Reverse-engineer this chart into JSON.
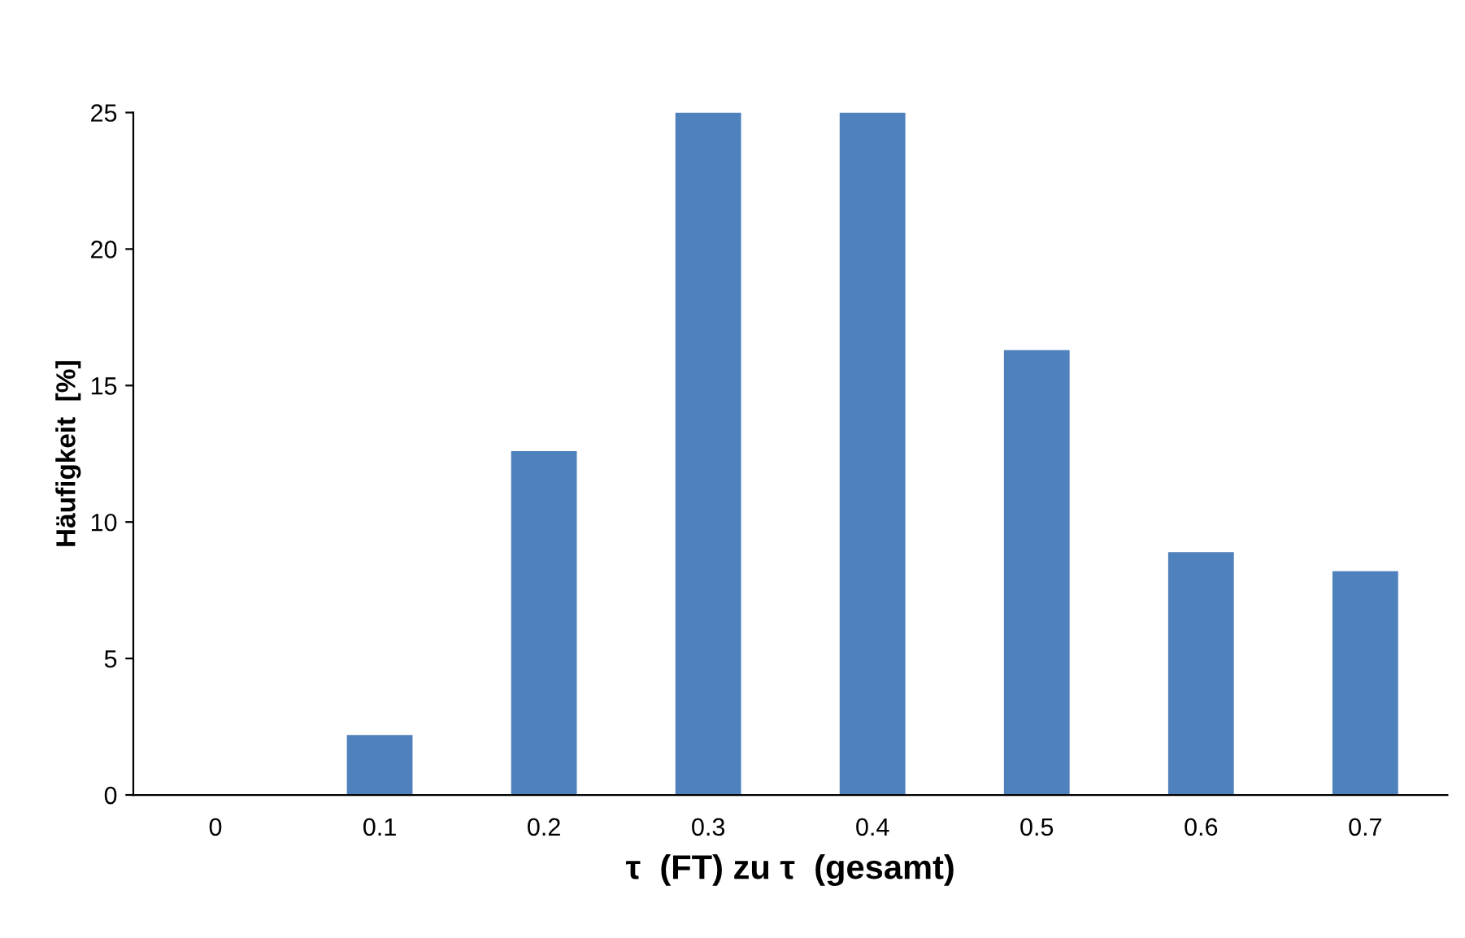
{
  "chart_data": {
    "type": "bar",
    "xlabel": "τ  (FT) zu τ  (gesamt)",
    "ylabel": "Häufigkeit  [%]",
    "categories": [
      "0",
      "0.1",
      "0.2",
      "0.3",
      "0.4",
      "0.5",
      "0.6",
      "0.7"
    ],
    "values": [
      0,
      2.2,
      12.6,
      25,
      25,
      16.3,
      8.9,
      8.2
    ],
    "color": "#4f81bd",
    "ylim": [
      0,
      25
    ],
    "yticks": [
      0,
      5,
      10,
      15,
      20,
      25
    ],
    "grid": false,
    "legend": false
  }
}
